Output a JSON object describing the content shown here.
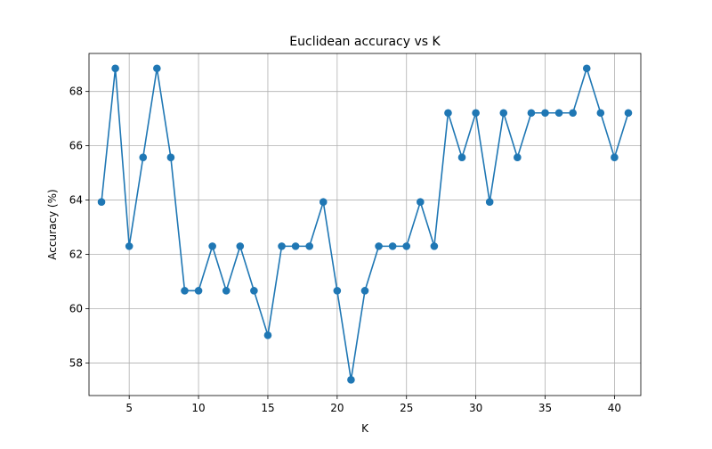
{
  "chart_data": {
    "type": "line",
    "title": "Euclidean accuracy vs K",
    "xlabel": "K",
    "ylabel": "Accuracy (%)",
    "xlim": [
      2.1,
      41.9
    ],
    "ylim": [
      56.8,
      69.4
    ],
    "xticks": [
      5,
      10,
      15,
      20,
      25,
      30,
      35,
      40
    ],
    "yticks": [
      58,
      60,
      62,
      64,
      66,
      68
    ],
    "grid": true,
    "legend": "none",
    "series": [
      {
        "color": "#1f77b4",
        "marker": "circle",
        "x": [
          3,
          4,
          5,
          6,
          7,
          8,
          9,
          10,
          11,
          12,
          13,
          14,
          15,
          16,
          17,
          18,
          19,
          20,
          21,
          22,
          23,
          24,
          25,
          26,
          27,
          28,
          29,
          30,
          31,
          32,
          33,
          34,
          35,
          36,
          37,
          38,
          39,
          40,
          41
        ],
        "y": [
          63.93,
          68.85,
          62.3,
          65.57,
          68.85,
          65.57,
          60.66,
          60.66,
          62.3,
          60.66,
          62.3,
          60.66,
          59.02,
          62.3,
          62.3,
          62.3,
          63.93,
          60.66,
          57.38,
          60.66,
          62.3,
          62.3,
          62.3,
          63.93,
          62.3,
          67.21,
          65.57,
          67.21,
          63.93,
          67.21,
          65.57,
          67.21,
          67.21,
          67.21,
          67.21,
          68.85,
          67.21,
          65.57,
          67.21
        ]
      }
    ]
  }
}
